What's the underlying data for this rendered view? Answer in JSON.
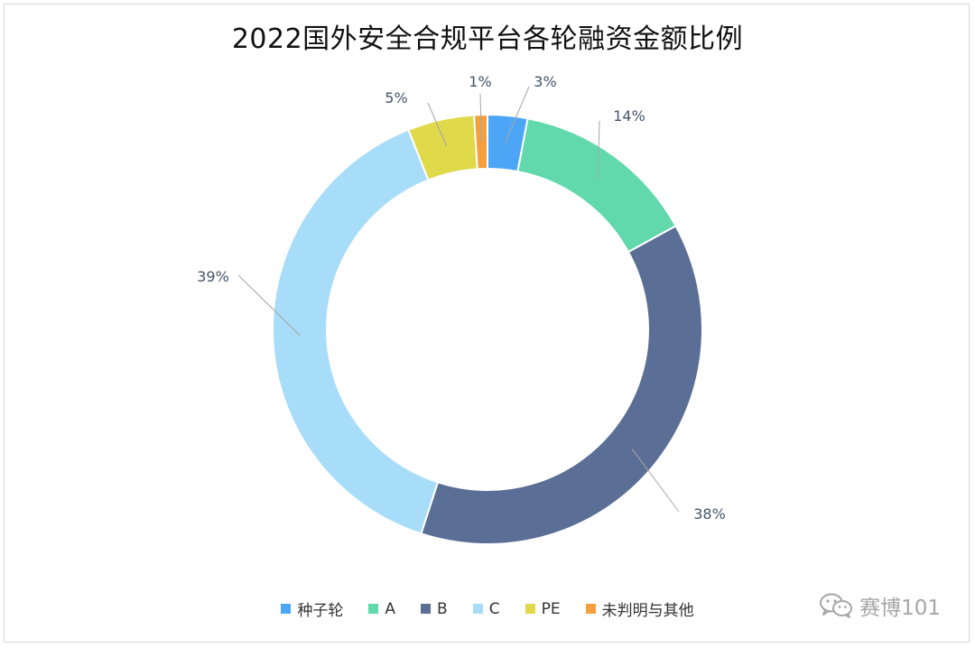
{
  "chart_data": {
    "type": "pie",
    "variant": "donut",
    "title": "2022国外安全合规平台各轮融资金额比例",
    "categories": [
      "种子轮",
      "A",
      "B",
      "C",
      "PE",
      "未判明与其他"
    ],
    "values": [
      3,
      14,
      38,
      39,
      5,
      1
    ],
    "data_labels": [
      "3%",
      "14%",
      "38%",
      "39%",
      "5%",
      "1%"
    ],
    "colors": [
      "#4da6f5",
      "#62d9ad",
      "#5b6e96",
      "#a8ddf9",
      "#e0d94a",
      "#f5a03c"
    ],
    "legend_position": "bottom"
  },
  "watermark": {
    "text": "赛博101",
    "icon": "wechat-icon"
  }
}
